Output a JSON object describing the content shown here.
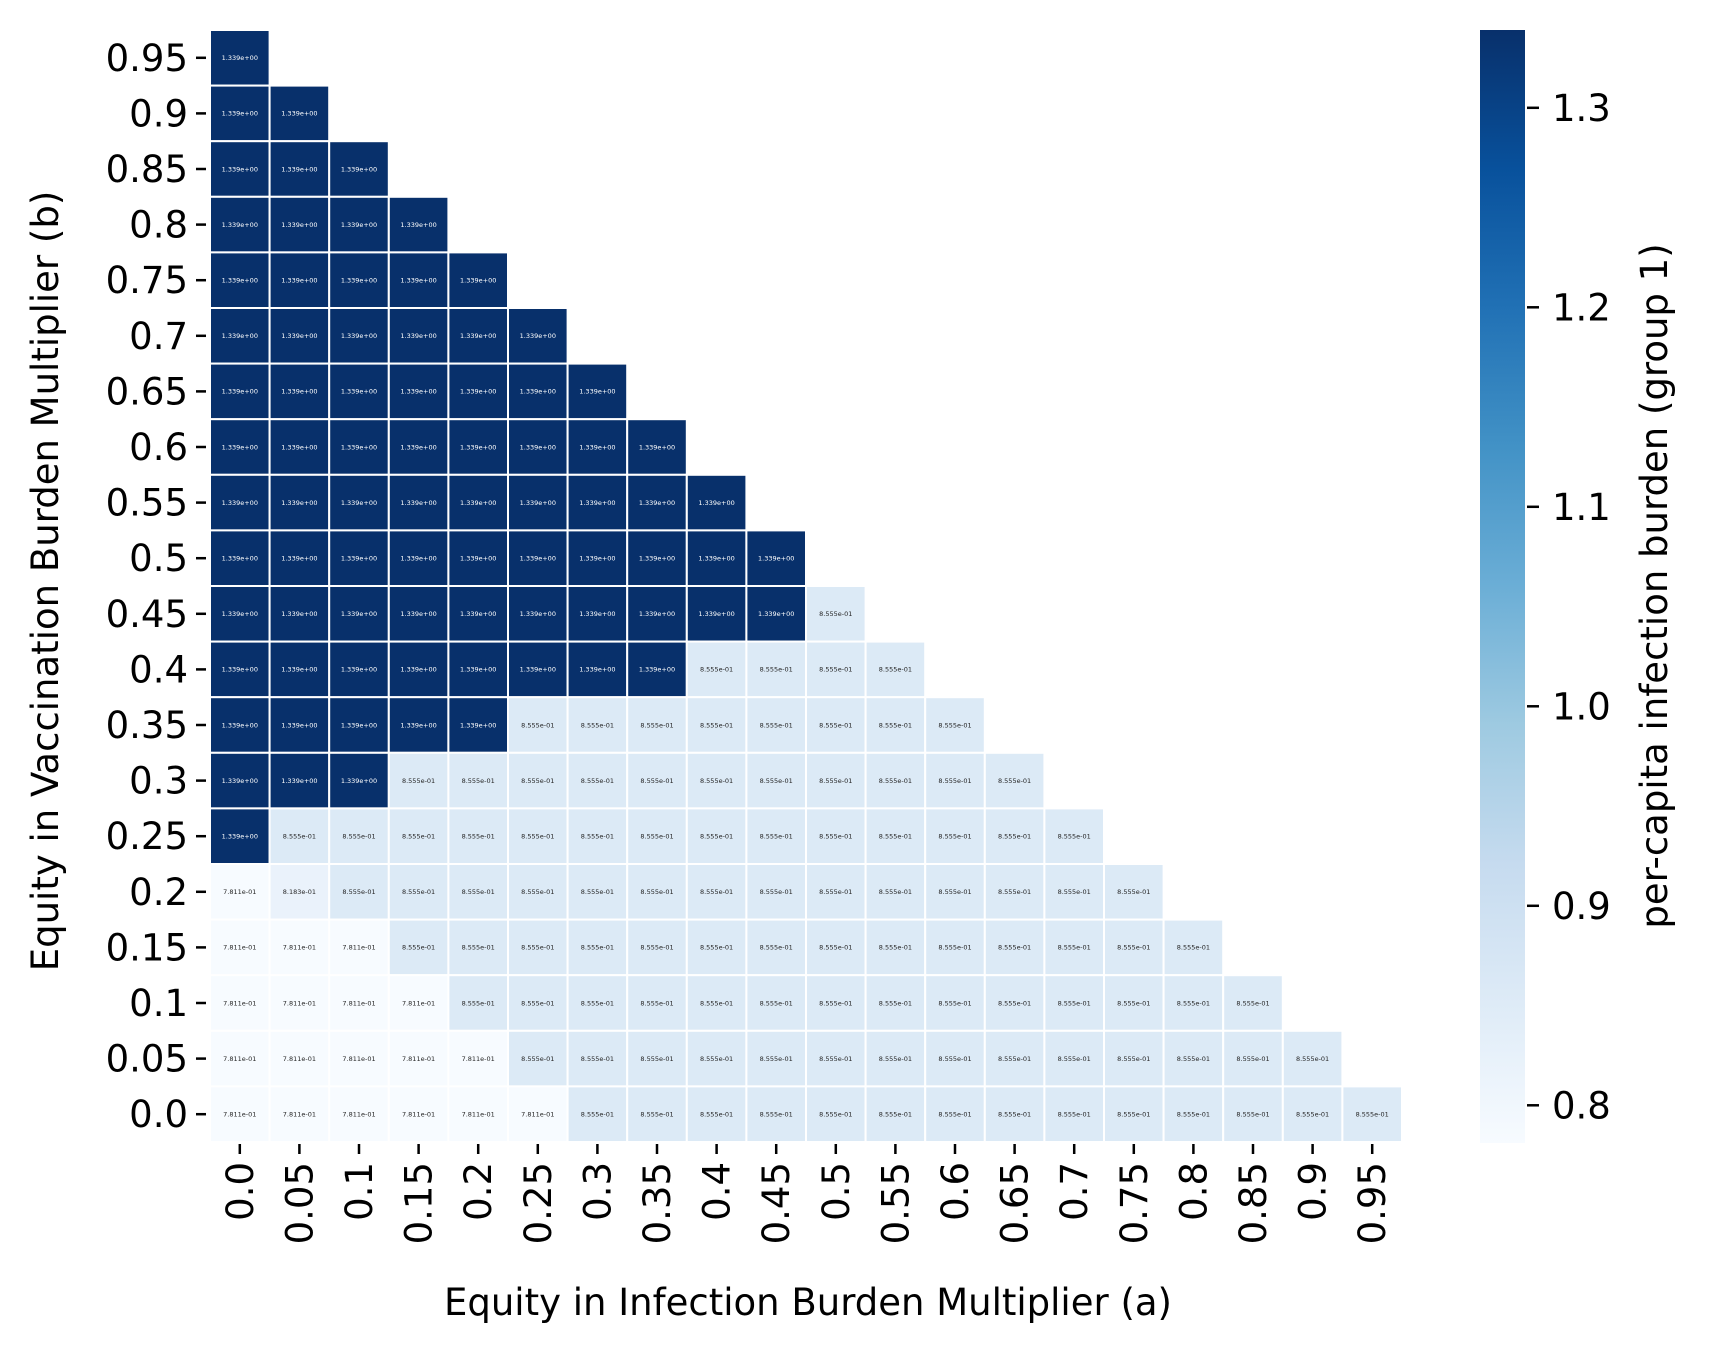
{
  "chart_data": {
    "type": "heatmap",
    "xlabel": "Equity in Infection Burden Multiplier (a)",
    "ylabel": "Equity in Vaccination Burden Multiplier (b)",
    "x_ticks": [
      "0.0",
      "0.05",
      "0.1",
      "0.15",
      "0.2",
      "0.25",
      "0.3",
      "0.35",
      "0.4",
      "0.45",
      "0.5",
      "0.55",
      "0.6",
      "0.65",
      "0.7",
      "0.75",
      "0.8",
      "0.85",
      "0.9",
      "0.95"
    ],
    "y_ticks": [
      "0.95",
      "0.9",
      "0.85",
      "0.8",
      "0.75",
      "0.7",
      "0.65",
      "0.6",
      "0.55",
      "0.5",
      "0.45",
      "0.4",
      "0.35",
      "0.3",
      "0.25",
      "0.2",
      "0.15",
      "0.1",
      "0.05",
      "0.0"
    ],
    "colorbar": {
      "label": "per-capita infection burden (group 1)",
      "ticks": [
        "1.3",
        "1.2",
        "1.1",
        "1.0",
        "0.9",
        "0.8"
      ],
      "tick_values": [
        1.3,
        1.2,
        1.1,
        1.0,
        0.9,
        0.8
      ],
      "vmin": 0.7811,
      "vmax": 1.339,
      "colormap": "Blues"
    },
    "value_labels": {
      "hi": "1.339e+00",
      "mid": "8.555e-01",
      "low": "7.811e-01",
      "special": "8.183e-01"
    },
    "values": [
      [
        1.339,
        null,
        null,
        null,
        null,
        null,
        null,
        null,
        null,
        null,
        null,
        null,
        null,
        null,
        null,
        null,
        null,
        null,
        null,
        null
      ],
      [
        1.339,
        1.339,
        null,
        null,
        null,
        null,
        null,
        null,
        null,
        null,
        null,
        null,
        null,
        null,
        null,
        null,
        null,
        null,
        null,
        null
      ],
      [
        1.339,
        1.339,
        1.339,
        null,
        null,
        null,
        null,
        null,
        null,
        null,
        null,
        null,
        null,
        null,
        null,
        null,
        null,
        null,
        null,
        null
      ],
      [
        1.339,
        1.339,
        1.339,
        1.339,
        null,
        null,
        null,
        null,
        null,
        null,
        null,
        null,
        null,
        null,
        null,
        null,
        null,
        null,
        null,
        null
      ],
      [
        1.339,
        1.339,
        1.339,
        1.339,
        1.339,
        null,
        null,
        null,
        null,
        null,
        null,
        null,
        null,
        null,
        null,
        null,
        null,
        null,
        null,
        null
      ],
      [
        1.339,
        1.339,
        1.339,
        1.339,
        1.339,
        1.339,
        null,
        null,
        null,
        null,
        null,
        null,
        null,
        null,
        null,
        null,
        null,
        null,
        null,
        null
      ],
      [
        1.339,
        1.339,
        1.339,
        1.339,
        1.339,
        1.339,
        1.339,
        null,
        null,
        null,
        null,
        null,
        null,
        null,
        null,
        null,
        null,
        null,
        null,
        null
      ],
      [
        1.339,
        1.339,
        1.339,
        1.339,
        1.339,
        1.339,
        1.339,
        1.339,
        null,
        null,
        null,
        null,
        null,
        null,
        null,
        null,
        null,
        null,
        null,
        null
      ],
      [
        1.339,
        1.339,
        1.339,
        1.339,
        1.339,
        1.339,
        1.339,
        1.339,
        1.339,
        null,
        null,
        null,
        null,
        null,
        null,
        null,
        null,
        null,
        null,
        null
      ],
      [
        1.339,
        1.339,
        1.339,
        1.339,
        1.339,
        1.339,
        1.339,
        1.339,
        1.339,
        1.339,
        null,
        null,
        null,
        null,
        null,
        null,
        null,
        null,
        null,
        null
      ],
      [
        1.339,
        1.339,
        1.339,
        1.339,
        1.339,
        1.339,
        1.339,
        1.339,
        1.339,
        1.339,
        0.8555,
        null,
        null,
        null,
        null,
        null,
        null,
        null,
        null,
        null
      ],
      [
        1.339,
        1.339,
        1.339,
        1.339,
        1.339,
        1.339,
        1.339,
        1.339,
        0.8555,
        0.8555,
        0.8555,
        0.8555,
        null,
        null,
        null,
        null,
        null,
        null,
        null,
        null
      ],
      [
        1.339,
        1.339,
        1.339,
        1.339,
        1.339,
        0.8555,
        0.8555,
        0.8555,
        0.8555,
        0.8555,
        0.8555,
        0.8555,
        0.8555,
        null,
        null,
        null,
        null,
        null,
        null,
        null
      ],
      [
        1.339,
        1.339,
        1.339,
        0.8555,
        0.8555,
        0.8555,
        0.8555,
        0.8555,
        0.8555,
        0.8555,
        0.8555,
        0.8555,
        0.8555,
        0.8555,
        null,
        null,
        null,
        null,
        null,
        null
      ],
      [
        1.339,
        0.8555,
        0.8555,
        0.8555,
        0.8555,
        0.8555,
        0.8555,
        0.8555,
        0.8555,
        0.8555,
        0.8555,
        0.8555,
        0.8555,
        0.8555,
        0.8555,
        null,
        null,
        null,
        null,
        null
      ],
      [
        0.7811,
        0.8183,
        0.8555,
        0.8555,
        0.8555,
        0.8555,
        0.8555,
        0.8555,
        0.8555,
        0.8555,
        0.8555,
        0.8555,
        0.8555,
        0.8555,
        0.8555,
        0.8555,
        null,
        null,
        null,
        null
      ],
      [
        0.7811,
        0.7811,
        0.7811,
        0.8555,
        0.8555,
        0.8555,
        0.8555,
        0.8555,
        0.8555,
        0.8555,
        0.8555,
        0.8555,
        0.8555,
        0.8555,
        0.8555,
        0.8555,
        0.8555,
        null,
        null,
        null
      ],
      [
        0.7811,
        0.7811,
        0.7811,
        0.7811,
        0.8555,
        0.8555,
        0.8555,
        0.8555,
        0.8555,
        0.8555,
        0.8555,
        0.8555,
        0.8555,
        0.8555,
        0.8555,
        0.8555,
        0.8555,
        0.8555,
        null,
        null
      ],
      [
        0.7811,
        0.7811,
        0.7811,
        0.7811,
        0.7811,
        0.8555,
        0.8555,
        0.8555,
        0.8555,
        0.8555,
        0.8555,
        0.8555,
        0.8555,
        0.8555,
        0.8555,
        0.8555,
        0.8555,
        0.8555,
        0.8555,
        null
      ],
      [
        0.7811,
        0.7811,
        0.7811,
        0.7811,
        0.7811,
        0.7811,
        0.8555,
        0.8555,
        0.8555,
        0.8555,
        0.8555,
        0.8555,
        0.8555,
        0.8555,
        0.8555,
        0.8555,
        0.8555,
        0.8555,
        0.8555,
        0.8555
      ]
    ],
    "grid": false
  }
}
